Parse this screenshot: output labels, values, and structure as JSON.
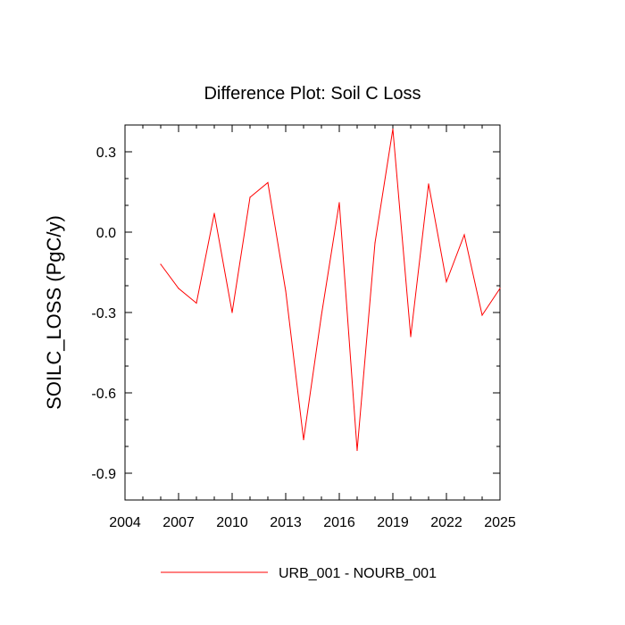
{
  "chart_data": {
    "type": "line",
    "title": "Difference Plot: Soil C Loss",
    "xlabel": "",
    "ylabel": "SOILC_LOSS  (PgC/y)",
    "xlim": [
      2004,
      2025
    ],
    "ylim": [
      -1.0,
      0.4
    ],
    "x_ticks": [
      2004,
      2007,
      2010,
      2013,
      2016,
      2019,
      2022,
      2025
    ],
    "x_tick_labels": [
      "2004",
      "2007",
      "2010",
      "2013",
      "2016",
      "2019",
      "2022",
      "2025"
    ],
    "y_ticks": [
      -0.9,
      -0.6,
      -0.3,
      0.0,
      0.3
    ],
    "y_tick_labels": [
      "-0.9",
      "-0.6",
      "-0.3",
      "0.0",
      "0.3"
    ],
    "grid": false,
    "legend_position": "bottom",
    "series": [
      {
        "name": "URB_001 - NOURB_001",
        "color": "#ff0000",
        "x": [
          2006,
          2007,
          2008,
          2009,
          2010,
          2011,
          2012,
          2013,
          2014,
          2015,
          2016,
          2017,
          2018,
          2019,
          2020,
          2021,
          2022,
          2023,
          2024,
          2025
        ],
        "y": [
          -0.12,
          -0.21,
          -0.265,
          0.07,
          -0.3,
          0.13,
          0.185,
          -0.22,
          -0.775,
          -0.31,
          0.11,
          -0.815,
          -0.04,
          0.385,
          -0.39,
          0.18,
          -0.185,
          -0.01,
          -0.31,
          -0.21
        ]
      }
    ]
  }
}
